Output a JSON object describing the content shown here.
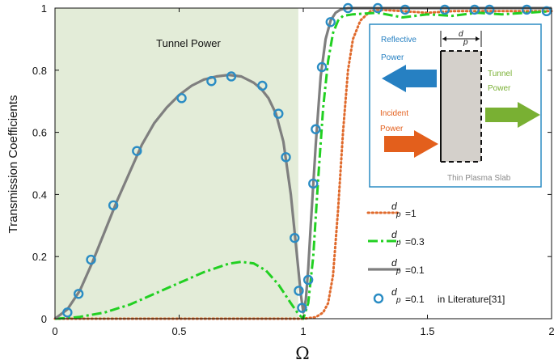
{
  "chart_data": {
    "type": "line",
    "xlabel": "Ω",
    "ylabel": "Transmission Coefficients",
    "xlim": [
      0,
      2
    ],
    "ylim": [
      0,
      1
    ],
    "x_ticks": [
      "0",
      "0.5",
      "1",
      "1.5",
      "2"
    ],
    "x_tick_values": [
      0,
      0.5,
      1,
      1.5,
      2
    ],
    "y_ticks": [
      "0",
      "0.2",
      "0.4",
      "0.6",
      "0.8",
      "1"
    ],
    "y_tick_values": [
      0,
      0.2,
      0.4,
      0.6,
      0.8,
      1
    ],
    "grid": false,
    "shaded_region": {
      "x": [
        0,
        0.98
      ],
      "label": "Tunnel Power",
      "color": "#e3ecd8"
    },
    "series": [
      {
        "name": "d_p =1",
        "legend_value": "=1",
        "style": "dotted",
        "color": "#e06a2c",
        "x": [
          0,
          0.9,
          0.98,
          1.0,
          1.05,
          1.08,
          1.1,
          1.12,
          1.14,
          1.16,
          1.18,
          1.2,
          1.23,
          1.27,
          1.3,
          1.4,
          1.5,
          1.6,
          1.7,
          1.8,
          1.9,
          2.0
        ],
        "y": [
          0,
          0,
          0,
          0,
          0.005,
          0.02,
          0.05,
          0.14,
          0.35,
          0.6,
          0.8,
          0.9,
          0.96,
          0.99,
          0.995,
          0.99,
          0.985,
          0.99,
          0.99,
          0.99,
          0.99,
          0.99
        ]
      },
      {
        "name": "d_p =0.3",
        "legend_value": "=0.3",
        "style": "dashdot",
        "color": "#22d022",
        "x": [
          0,
          0.05,
          0.1,
          0.2,
          0.3,
          0.4,
          0.5,
          0.6,
          0.7,
          0.75,
          0.8,
          0.85,
          0.9,
          0.95,
          0.98,
          1.0,
          1.02,
          1.04,
          1.06,
          1.08,
          1.1,
          1.12,
          1.14,
          1.16,
          1.2,
          1.3,
          1.4,
          1.5,
          1.6,
          1.7,
          1.8,
          1.9,
          2.0
        ],
        "y": [
          0,
          0.002,
          0.006,
          0.02,
          0.045,
          0.08,
          0.115,
          0.15,
          0.177,
          0.183,
          0.178,
          0.155,
          0.11,
          0.05,
          0.015,
          0.0,
          0.05,
          0.2,
          0.45,
          0.68,
          0.83,
          0.92,
          0.96,
          0.975,
          0.98,
          0.985,
          0.97,
          0.98,
          0.975,
          0.985,
          0.98,
          0.985,
          0.99
        ]
      },
      {
        "name": "d_p =0.1",
        "legend_value": "=0.1",
        "style": "solid",
        "color": "#7f7f7f",
        "x": [
          0,
          0.05,
          0.1,
          0.15,
          0.2,
          0.25,
          0.3,
          0.35,
          0.4,
          0.45,
          0.5,
          0.55,
          0.6,
          0.65,
          0.7,
          0.75,
          0.8,
          0.83,
          0.86,
          0.89,
          0.92,
          0.95,
          0.97,
          0.99,
          1.0,
          1.01,
          1.02,
          1.03,
          1.04,
          1.05,
          1.07,
          1.09,
          1.11,
          1.13,
          1.15,
          1.18,
          1.25,
          1.4,
          1.6,
          1.8,
          2.0
        ],
        "y": [
          0,
          0.03,
          0.09,
          0.18,
          0.28,
          0.38,
          0.47,
          0.56,
          0.63,
          0.68,
          0.72,
          0.75,
          0.77,
          0.78,
          0.785,
          0.78,
          0.76,
          0.74,
          0.71,
          0.66,
          0.57,
          0.4,
          0.24,
          0.08,
          0.02,
          0.06,
          0.16,
          0.3,
          0.43,
          0.56,
          0.78,
          0.9,
          0.96,
          0.985,
          0.995,
          1.0,
          1.0,
          1.0,
          1.0,
          1.0,
          1.0
        ]
      },
      {
        "name": "d_p =0.1 in Literature[31]",
        "legend_value": "=0.1",
        "legend_suffix": "in Literature[31]",
        "style": "circle-markers",
        "color": "#2a8cc4",
        "x": [
          0.05,
          0.095,
          0.145,
          0.235,
          0.33,
          0.51,
          0.63,
          0.71,
          0.835,
          0.9,
          0.93,
          0.965,
          0.982,
          0.995,
          1.02,
          1.04,
          1.05,
          1.075,
          1.11,
          1.18,
          1.3,
          1.41,
          1.57,
          1.69,
          1.75,
          1.9,
          1.98
        ],
        "y": [
          0.02,
          0.08,
          0.19,
          0.365,
          0.54,
          0.71,
          0.765,
          0.78,
          0.75,
          0.66,
          0.52,
          0.26,
          0.09,
          0.035,
          0.125,
          0.435,
          0.61,
          0.81,
          0.955,
          1.0,
          1.0,
          0.995,
          0.995,
          0.995,
          0.995,
          0.995,
          0.99
        ]
      }
    ],
    "legend": {
      "placement": "lower-right",
      "prefix": "d",
      "subscript": "p"
    },
    "inset": {
      "reflective_label": [
        "Reflective",
        "Power"
      ],
      "tunnel_label": [
        "Tunnel",
        "Power"
      ],
      "incident_label": [
        "Incident",
        "Power"
      ],
      "slab_label": "Thin Plasma Slab",
      "dim_label": "d",
      "dim_sub": "p",
      "colors": {
        "reflective": "#2680c2",
        "tunnel": "#79b033",
        "incident": "#e35f1c",
        "slab": "#d4d0cb",
        "frame": "#2a8cc4"
      }
    }
  }
}
